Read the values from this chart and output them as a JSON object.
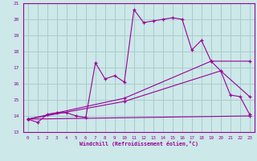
{
  "xlabel": "Windchill (Refroidissement éolien,°C)",
  "bg_color": "#cce8e8",
  "line_color": "#990099",
  "grid_color": "#aacccc",
  "spine_color": "#9900aa",
  "xlim": [
    -0.5,
    23.5
  ],
  "ylim": [
    13,
    21
  ],
  "xticks": [
    0,
    1,
    2,
    3,
    4,
    5,
    6,
    7,
    8,
    9,
    10,
    11,
    12,
    13,
    14,
    15,
    16,
    17,
    18,
    19,
    20,
    21,
    22,
    23
  ],
  "yticks": [
    13,
    14,
    15,
    16,
    17,
    18,
    19,
    20,
    21
  ],
  "lines": [
    {
      "x": [
        0,
        1,
        2,
        3,
        4,
        5,
        6,
        7,
        8,
        9,
        10,
        11,
        12,
        13,
        14,
        15,
        16,
        17,
        18,
        19,
        20,
        21,
        22,
        23
      ],
      "y": [
        13.8,
        13.6,
        14.1,
        14.2,
        14.2,
        14.0,
        13.9,
        17.3,
        16.3,
        16.5,
        16.1,
        20.6,
        19.8,
        19.9,
        20.0,
        20.1,
        20.0,
        18.1,
        18.7,
        17.4,
        16.8,
        15.3,
        15.2,
        14.1
      ]
    },
    {
      "x": [
        0,
        23
      ],
      "y": [
        13.8,
        14.0
      ]
    },
    {
      "x": [
        0,
        10,
        20,
        23
      ],
      "y": [
        13.8,
        14.9,
        16.8,
        15.2
      ]
    },
    {
      "x": [
        0,
        10,
        19,
        23
      ],
      "y": [
        13.8,
        15.1,
        17.4,
        17.4
      ]
    }
  ]
}
